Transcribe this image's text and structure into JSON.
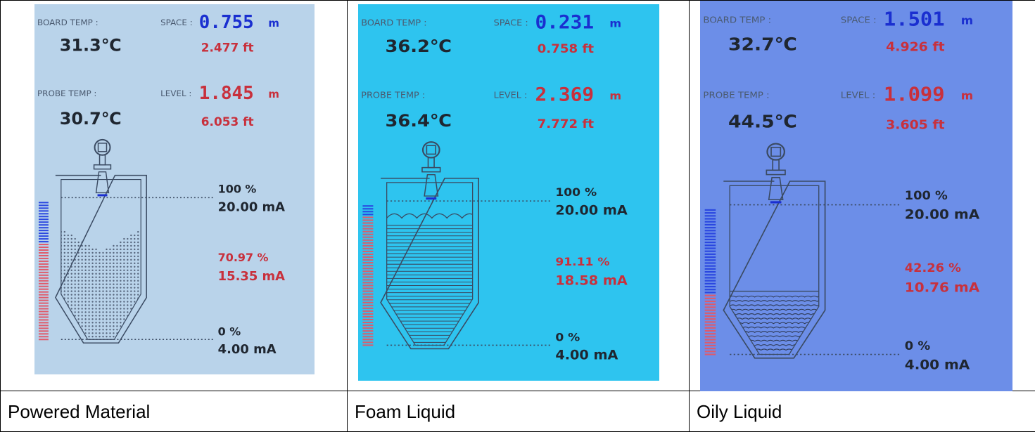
{
  "panels": [
    {
      "caption": "Powered Material",
      "bg": "#b9d3ea",
      "board_temp_label": "BOARD TEMP :",
      "board_temp": "31.3℃",
      "space_label": "SPACE :",
      "space_m": "0.755",
      "space_unit": "m",
      "space_ft": "2.477 ft",
      "probe_temp_label": "PROBE TEMP :",
      "probe_temp": "30.7℃",
      "level_label": "LEVEL :",
      "level_m": "1.845",
      "level_unit": "m",
      "level_ft": "6.053 ft",
      "top_pct": "100 %",
      "top_ma": "20.00 mA",
      "cur_pct": "70.97 %",
      "cur_ma": "15.35 mA",
      "bot_pct": "0 %",
      "bot_ma": "4.00 mA",
      "level_fraction": 0.7097,
      "fill_style": "dots"
    },
    {
      "caption": "Foam Liquid",
      "bg": "#2ec4ef",
      "board_temp_label": "BOARD TEMP :",
      "board_temp": "36.2℃",
      "space_label": "SPACE :",
      "space_m": "0.231",
      "space_unit": "m",
      "space_ft": "0.758 ft",
      "probe_temp_label": "PROBE TEMP :",
      "probe_temp": "36.4℃",
      "level_label": "LEVEL :",
      "level_m": "2.369",
      "level_unit": "m",
      "level_ft": "7.772 ft",
      "top_pct": "100 %",
      "top_ma": "20.00 mA",
      "cur_pct": "91.11 %",
      "cur_ma": "18.58 mA",
      "bot_pct": "0 %",
      "bot_ma": "4.00 mA",
      "level_fraction": 0.9111,
      "fill_style": "foam"
    },
    {
      "caption": "Oily Liquid",
      "bg": "#6c8ee8",
      "board_temp_label": "BOARD TEMP :",
      "board_temp": "32.7℃",
      "space_label": "SPACE :",
      "space_m": "1.501",
      "space_unit": "m",
      "space_ft": "4.926 ft",
      "probe_temp_label": "PROBE TEMP :",
      "probe_temp": "44.5℃",
      "level_label": "LEVEL :",
      "level_m": "1.099",
      "level_unit": "m",
      "level_ft": "3.605 ft",
      "top_pct": "100 %",
      "top_ma": "20.00 mA",
      "cur_pct": "42.26 %",
      "cur_ma": "10.76 mA",
      "bot_pct": "0 %",
      "bot_ma": "4.00 mA",
      "level_fraction": 0.4226,
      "fill_style": "waves"
    }
  ],
  "colors": {
    "text_dark": "#1f2630",
    "label_grey": "#4a5a70",
    "space_blue": "#1a2fd0",
    "level_red": "#c8303c",
    "bar_blue": "#2a47e0",
    "bar_red": "#e05a6a"
  }
}
